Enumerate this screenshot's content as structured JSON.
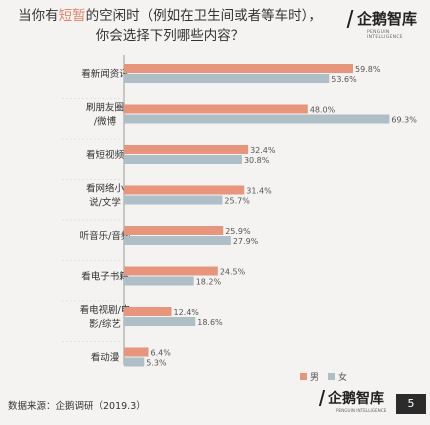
{
  "header": {
    "title_part1": "当你有",
    "title_highlight": "短暂",
    "title_part2": "的空闲时（例如在卫生间或者等车时），",
    "title_line2": "你会选择下列哪些内容？"
  },
  "logo": {
    "text": "企鹅智库",
    "sub": "PENGUIN INTELLIGENCE"
  },
  "footer": {
    "source": "数据来源：企鹅调研（2019.3）",
    "page": "5"
  },
  "colors": {
    "male": "#e8957e",
    "female": "#aebfc7",
    "highlight": "#e8826a"
  },
  "chart_data": {
    "type": "bar",
    "orientation": "horizontal",
    "title": "",
    "xlabel": "",
    "ylabel": "",
    "xlim": [
      0,
      75
    ],
    "grid": false,
    "legend_position": "bottom-right",
    "categories": [
      [
        "看新闻资讯"
      ],
      [
        "刷朋友圈",
        "/微博"
      ],
      [
        "看短视频"
      ],
      [
        "看网络小",
        "说/文学"
      ],
      [
        "听音乐/音频"
      ],
      [
        "看电子书籍"
      ],
      [
        "看电视剧/电",
        "影/综艺"
      ],
      [
        "看动漫"
      ]
    ],
    "series": [
      {
        "name": "男",
        "values": [
          59.8,
          48.0,
          32.4,
          31.4,
          25.9,
          24.5,
          12.4,
          6.4
        ],
        "labels": [
          "59.8%",
          "48.0%",
          "32.4%",
          "31.4%",
          "25.9%",
          "24.5%",
          "12.4%",
          "6.4%"
        ]
      },
      {
        "name": "女",
        "values": [
          53.6,
          69.3,
          30.8,
          25.7,
          27.9,
          18.2,
          18.6,
          5.3
        ],
        "labels": [
          "53.6%",
          "69.3%",
          "30.8%",
          "25.7%",
          "27.9%",
          "18.2%",
          "18.6%",
          "5.3%"
        ]
      }
    ]
  }
}
